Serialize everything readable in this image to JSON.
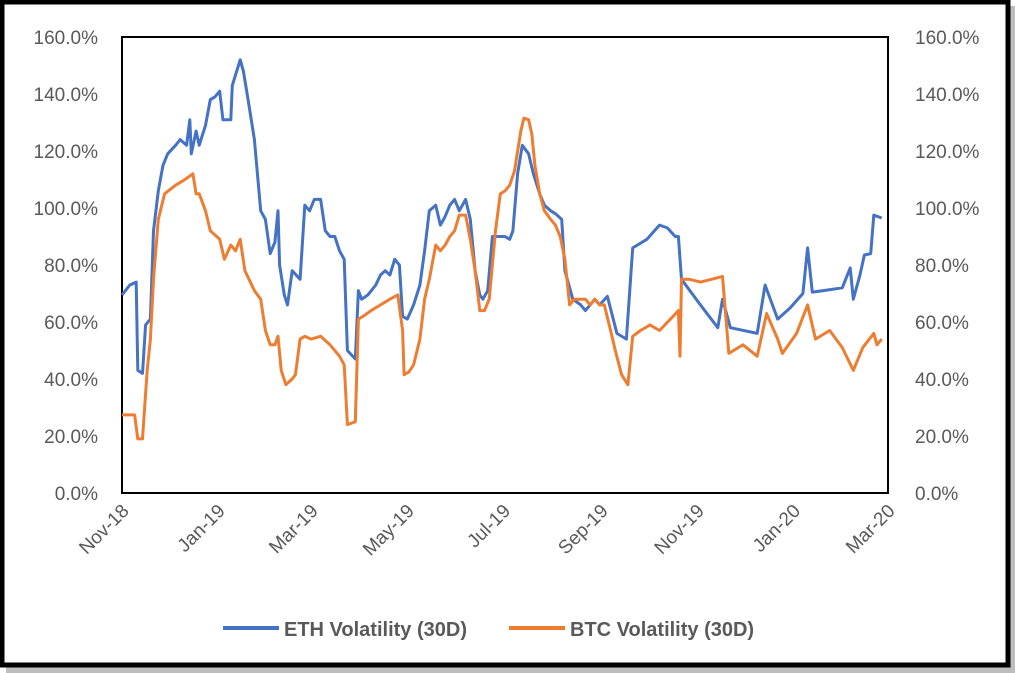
{
  "chart_data": {
    "type": "line",
    "title": "",
    "xlabel": "",
    "ylabel": "",
    "ylim": [
      0,
      160
    ],
    "y2lim": [
      0,
      160
    ],
    "xlim": [
      "2018-11-01",
      "2020-03-01"
    ],
    "grid": false,
    "legend_position": "bottom",
    "y_ticks": [
      "0.0%",
      "20.0%",
      "40.0%",
      "60.0%",
      "80.0%",
      "100.0%",
      "120.0%",
      "140.0%",
      "160.0%"
    ],
    "y_tick_values": [
      0,
      20,
      40,
      60,
      80,
      100,
      120,
      140,
      160
    ],
    "x_ticks": [
      "Nov-18",
      "Jan-19",
      "Mar-19",
      "May-19",
      "Jul-19",
      "Sep-19",
      "Nov-19",
      "Jan-20",
      "Mar-20"
    ],
    "x_tick_dates": [
      "2018-11-01",
      "2019-01-01",
      "2019-03-01",
      "2019-05-01",
      "2019-07-01",
      "2019-09-01",
      "2019-11-01",
      "2020-01-01",
      "2020-03-01"
    ],
    "series": [
      {
        "name": "ETH Volatility (30D)",
        "color": "#4472C4",
        "points": [
          [
            "2018-11-01",
            69.5
          ],
          [
            "2018-11-06",
            73
          ],
          [
            "2018-11-10",
            74
          ],
          [
            "2018-11-11",
            43
          ],
          [
            "2018-11-14",
            42
          ],
          [
            "2018-11-16",
            59
          ],
          [
            "2018-11-19",
            61
          ],
          [
            "2018-11-21",
            92
          ],
          [
            "2018-11-24",
            106
          ],
          [
            "2018-11-27",
            115
          ],
          [
            "2018-11-30",
            119
          ],
          [
            "2018-12-05",
            122
          ],
          [
            "2018-12-08",
            124
          ],
          [
            "2018-12-12",
            122
          ],
          [
            "2018-12-14",
            131
          ],
          [
            "2018-12-15",
            119
          ],
          [
            "2018-12-18",
            127
          ],
          [
            "2018-12-20",
            122
          ],
          [
            "2018-12-24",
            129
          ],
          [
            "2018-12-27",
            138
          ],
          [
            "2018-12-30",
            139
          ],
          [
            "2019-01-02",
            141
          ],
          [
            "2019-01-04",
            131
          ],
          [
            "2019-01-09",
            131
          ],
          [
            "2019-01-10",
            143
          ],
          [
            "2019-01-15",
            152
          ],
          [
            "2019-01-17",
            148
          ],
          [
            "2019-01-20",
            138
          ],
          [
            "2019-01-24",
            124
          ],
          [
            "2019-01-28",
            99
          ],
          [
            "2019-01-31",
            96
          ],
          [
            "2019-02-03",
            84
          ],
          [
            "2019-02-06",
            88
          ],
          [
            "2019-02-08",
            99
          ],
          [
            "2019-02-09",
            80
          ],
          [
            "2019-02-12",
            69.5
          ],
          [
            "2019-02-14",
            66
          ],
          [
            "2019-02-17",
            78
          ],
          [
            "2019-02-22",
            75
          ],
          [
            "2019-02-25",
            101
          ],
          [
            "2019-02-28",
            99
          ],
          [
            "2019-03-03",
            103
          ],
          [
            "2019-03-07",
            103
          ],
          [
            "2019-03-10",
            92
          ],
          [
            "2019-03-13",
            90
          ],
          [
            "2019-03-16",
            90
          ],
          [
            "2019-03-19",
            85
          ],
          [
            "2019-03-22",
            82
          ],
          [
            "2019-03-24",
            50
          ],
          [
            "2019-03-29",
            47
          ],
          [
            "2019-03-31",
            71
          ],
          [
            "2019-04-02",
            68
          ],
          [
            "2019-04-06",
            69.5
          ],
          [
            "2019-04-11",
            73
          ],
          [
            "2019-04-14",
            76.5
          ],
          [
            "2019-04-17",
            78
          ],
          [
            "2019-04-20",
            76.5
          ],
          [
            "2019-04-23",
            82
          ],
          [
            "2019-04-26",
            80
          ],
          [
            "2019-04-28",
            62
          ],
          [
            "2019-05-01",
            61
          ],
          [
            "2019-05-05",
            66
          ],
          [
            "2019-05-09",
            73
          ],
          [
            "2019-05-12",
            85
          ],
          [
            "2019-05-15",
            99
          ],
          [
            "2019-05-19",
            101
          ],
          [
            "2019-05-22",
            94
          ],
          [
            "2019-05-25",
            97
          ],
          [
            "2019-05-28",
            101
          ],
          [
            "2019-05-31",
            103
          ],
          [
            "2019-06-03",
            99
          ],
          [
            "2019-06-07",
            103
          ],
          [
            "2019-06-10",
            96
          ],
          [
            "2019-06-13",
            78
          ],
          [
            "2019-06-16",
            69.5
          ],
          [
            "2019-06-18",
            68
          ],
          [
            "2019-06-21",
            71
          ],
          [
            "2019-06-24",
            90
          ],
          [
            "2019-06-29",
            90
          ],
          [
            "2019-07-02",
            90
          ],
          [
            "2019-07-05",
            89
          ],
          [
            "2019-07-07",
            92
          ],
          [
            "2019-07-10",
            112
          ],
          [
            "2019-07-13",
            122
          ],
          [
            "2019-07-17",
            119
          ],
          [
            "2019-07-20",
            112
          ],
          [
            "2019-07-24",
            105
          ],
          [
            "2019-07-27",
            101
          ],
          [
            "2019-07-31",
            99
          ],
          [
            "2019-08-03",
            98
          ],
          [
            "2019-08-07",
            96
          ],
          [
            "2019-08-09",
            78
          ],
          [
            "2019-08-14",
            68
          ],
          [
            "2019-08-19",
            66
          ],
          [
            "2019-08-22",
            64
          ],
          [
            "2019-08-25",
            66
          ],
          [
            "2019-08-28",
            68
          ],
          [
            "2019-08-31",
            66
          ],
          [
            "2019-09-05",
            69
          ],
          [
            "2019-09-11",
            56
          ],
          [
            "2019-09-17",
            54
          ],
          [
            "2019-09-21",
            86
          ],
          [
            "2019-09-30",
            89
          ],
          [
            "2019-10-08",
            94
          ],
          [
            "2019-10-13",
            93
          ],
          [
            "2019-10-18",
            90
          ],
          [
            "2019-10-20",
            90
          ],
          [
            "2019-10-22",
            75
          ],
          [
            "2019-11-03",
            66
          ],
          [
            "2019-11-14",
            58
          ],
          [
            "2019-11-17",
            68
          ],
          [
            "2019-11-22",
            58
          ],
          [
            "2019-12-09",
            56
          ],
          [
            "2019-12-14",
            73
          ],
          [
            "2019-12-22",
            61
          ],
          [
            "2019-12-30",
            65
          ],
          [
            "2020-01-07",
            70
          ],
          [
            "2020-01-10",
            86
          ],
          [
            "2020-01-13",
            70.5
          ],
          [
            "2020-01-20",
            71
          ],
          [
            "2020-02-01",
            72
          ],
          [
            "2020-02-06",
            79
          ],
          [
            "2020-02-08",
            68
          ],
          [
            "2020-02-12",
            76
          ],
          [
            "2020-02-15",
            83.5
          ],
          [
            "2020-02-19",
            84
          ],
          [
            "2020-02-21",
            97.5
          ],
          [
            "2020-02-26",
            96.5
          ]
        ]
      },
      {
        "name": "BTC Volatility (30D)",
        "color": "#ED7D31",
        "points": [
          [
            "2018-11-01",
            27.4
          ],
          [
            "2018-11-09",
            27.4
          ],
          [
            "2018-11-11",
            19
          ],
          [
            "2018-11-14",
            19
          ],
          [
            "2018-11-17",
            43
          ],
          [
            "2018-11-19",
            54
          ],
          [
            "2018-11-21",
            75
          ],
          [
            "2018-11-24",
            96
          ],
          [
            "2018-11-28",
            105
          ],
          [
            "2018-12-05",
            108
          ],
          [
            "2018-12-11",
            110
          ],
          [
            "2018-12-16",
            112
          ],
          [
            "2018-12-18",
            105
          ],
          [
            "2018-12-20",
            105
          ],
          [
            "2018-12-24",
            99
          ],
          [
            "2018-12-27",
            92
          ],
          [
            "2019-01-02",
            89
          ],
          [
            "2019-01-05",
            82
          ],
          [
            "2019-01-09",
            87
          ],
          [
            "2019-01-12",
            85
          ],
          [
            "2019-01-15",
            89
          ],
          [
            "2019-01-18",
            78
          ],
          [
            "2019-01-24",
            71
          ],
          [
            "2019-01-28",
            68
          ],
          [
            "2019-01-31",
            57
          ],
          [
            "2019-02-03",
            52
          ],
          [
            "2019-02-06",
            52
          ],
          [
            "2019-02-08",
            55
          ],
          [
            "2019-02-10",
            43
          ],
          [
            "2019-02-13",
            38
          ],
          [
            "2019-02-17",
            40
          ],
          [
            "2019-02-19",
            41.5
          ],
          [
            "2019-02-22",
            54
          ],
          [
            "2019-02-25",
            55
          ],
          [
            "2019-03-01",
            54
          ],
          [
            "2019-03-07",
            55
          ],
          [
            "2019-03-13",
            52
          ],
          [
            "2019-03-19",
            48
          ],
          [
            "2019-03-22",
            45
          ],
          [
            "2019-03-24",
            24
          ],
          [
            "2019-03-29",
            25
          ],
          [
            "2019-03-31",
            61
          ],
          [
            "2019-04-03",
            62
          ],
          [
            "2019-04-08",
            64
          ],
          [
            "2019-04-14",
            66
          ],
          [
            "2019-04-20",
            68
          ],
          [
            "2019-04-25",
            69.5
          ],
          [
            "2019-04-28",
            57
          ],
          [
            "2019-04-29",
            41.5
          ],
          [
            "2019-05-02",
            42.5
          ],
          [
            "2019-05-05",
            45
          ],
          [
            "2019-05-09",
            54
          ],
          [
            "2019-05-12",
            68
          ],
          [
            "2019-05-15",
            75
          ],
          [
            "2019-05-19",
            87
          ],
          [
            "2019-05-22",
            85
          ],
          [
            "2019-05-25",
            87
          ],
          [
            "2019-05-28",
            90
          ],
          [
            "2019-05-31",
            92
          ],
          [
            "2019-06-03",
            97.5
          ],
          [
            "2019-06-07",
            97.5
          ],
          [
            "2019-06-10",
            89
          ],
          [
            "2019-06-13",
            78
          ],
          [
            "2019-06-16",
            64
          ],
          [
            "2019-06-19",
            64
          ],
          [
            "2019-06-22",
            68
          ],
          [
            "2019-06-26",
            92
          ],
          [
            "2019-06-29",
            105
          ],
          [
            "2019-07-02",
            106
          ],
          [
            "2019-07-05",
            108
          ],
          [
            "2019-07-08",
            113
          ],
          [
            "2019-07-12",
            127
          ],
          [
            "2019-07-14",
            131.5
          ],
          [
            "2019-07-17",
            131
          ],
          [
            "2019-07-19",
            126
          ],
          [
            "2019-07-21",
            115
          ],
          [
            "2019-07-24",
            105
          ],
          [
            "2019-07-27",
            99
          ],
          [
            "2019-07-31",
            96
          ],
          [
            "2019-08-03",
            94
          ],
          [
            "2019-08-06",
            90
          ],
          [
            "2019-08-09",
            82
          ],
          [
            "2019-08-12",
            66
          ],
          [
            "2019-08-15",
            68
          ],
          [
            "2019-08-22",
            68
          ],
          [
            "2019-08-25",
            66
          ],
          [
            "2019-08-28",
            68
          ],
          [
            "2019-08-31",
            66
          ],
          [
            "2019-09-03",
            66
          ],
          [
            "2019-09-07",
            57
          ],
          [
            "2019-09-10",
            50
          ],
          [
            "2019-09-14",
            41.5
          ],
          [
            "2019-09-18",
            38
          ],
          [
            "2019-09-21",
            55
          ],
          [
            "2019-09-26",
            57
          ],
          [
            "2019-10-02",
            59
          ],
          [
            "2019-10-08",
            57
          ],
          [
            "2019-10-15",
            61
          ],
          [
            "2019-10-20",
            64
          ],
          [
            "2019-10-21",
            48
          ],
          [
            "2019-10-22",
            75
          ],
          [
            "2019-10-27",
            75
          ],
          [
            "2019-11-03",
            74
          ],
          [
            "2019-11-10",
            75
          ],
          [
            "2019-11-17",
            76
          ],
          [
            "2019-11-21",
            49
          ],
          [
            "2019-11-30",
            52
          ],
          [
            "2019-12-09",
            48
          ],
          [
            "2019-12-15",
            63
          ],
          [
            "2019-12-22",
            54
          ],
          [
            "2019-12-25",
            49
          ],
          [
            "2020-01-03",
            56
          ],
          [
            "2020-01-10",
            66
          ],
          [
            "2020-01-15",
            54
          ],
          [
            "2020-01-24",
            57
          ],
          [
            "2020-02-01",
            51
          ],
          [
            "2020-02-08",
            43
          ],
          [
            "2020-02-14",
            51
          ],
          [
            "2020-02-21",
            56
          ],
          [
            "2020-02-23",
            52
          ],
          [
            "2020-02-26",
            54
          ]
        ]
      }
    ]
  }
}
